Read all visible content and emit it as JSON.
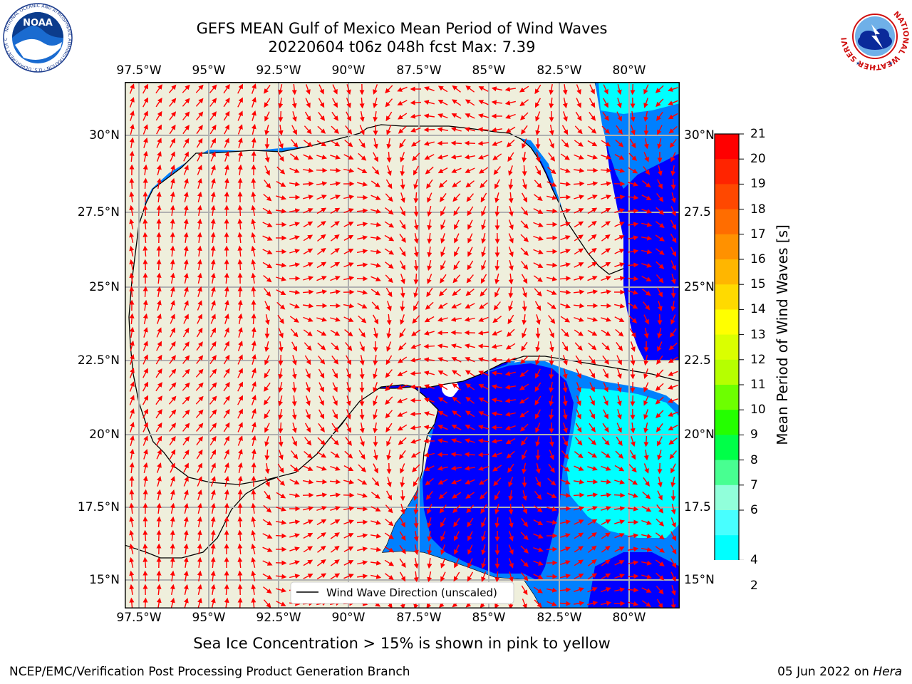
{
  "title_line1": "GEFS MEAN Gulf of Mexico Mean Period of Wind Waves",
  "title_line2": "20220604 t06z 048h fcst   Max: 7.39",
  "lon_ticks": [
    "97.5°W",
    "95°W",
    "92.5°W",
    "90°W",
    "87.5°W",
    "85°W",
    "82.5°W",
    "80°W"
  ],
  "lat_ticks_left": [
    "30°N",
    "27.5°N",
    "25°N",
    "22.5°N",
    "20°N",
    "17.5°N",
    "15°N"
  ],
  "lat_ticks_right": [
    "30°N",
    "27.5",
    "25°N",
    "22.5",
    "20°N",
    "17.5",
    "15°N"
  ],
  "legend_label": "Wind Wave Direction (unscaled)",
  "colorbar": {
    "label": "Mean Period of Wind Waves [s]",
    "ticks": [
      "21",
      "20",
      "19",
      "18",
      "17",
      "16",
      "15",
      "14",
      "13",
      "12",
      "11",
      "10",
      "9",
      "8",
      "7",
      "6",
      "4",
      "2"
    ],
    "colors": [
      "#ff0000",
      "#ff2400",
      "#ff4800",
      "#ff6d00",
      "#ff9100",
      "#ffb600",
      "#ffda00",
      "#ffff00",
      "#daff00",
      "#b6ff00",
      "#6dff00",
      "#24ff00",
      "#00ff48",
      "#48ff91",
      "#91ffda",
      "#48ffff",
      "#00ffff",
      "#00ffff",
      "#0080ff",
      "#0000ff"
    ]
  },
  "colors": {
    "land": "#efefdc",
    "ice_free_white": "#ffffff",
    "blue_2s": "#0000ff",
    "blue_4s": "#0080ff",
    "cyan_6s": "#00ffff",
    "arrow": "#ff0000"
  },
  "footer_note": "Sea Ice Concentration > 15% is shown in pink to yellow",
  "footer_left": "NCEP/EMC/Verification Post Processing Product Generation Branch",
  "footer_right_date": "05 Jun 2022 on",
  "footer_right_host": "Hera",
  "noaa_logo": {
    "text": "NOAA",
    "ring_text": "NATIONAL OCEANIC AND ATMOSPHERIC ADMINISTRATION · U.S. DEPARTMENT OF COMMERCE"
  },
  "nws_logo": {
    "ring_text": "NATIONAL WEATHER SERVICE"
  }
}
